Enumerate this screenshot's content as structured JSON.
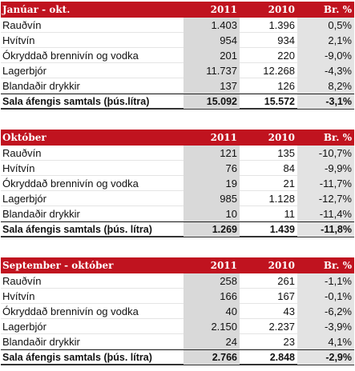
{
  "tables": [
    {
      "header": [
        "Janúar  - okt.",
        "2011",
        "2010",
        "Br. %"
      ],
      "rows": [
        [
          "Rauðvín",
          "1.403",
          "1.396",
          "0,5%"
        ],
        [
          "Hvítvín",
          "954",
          "934",
          "2,1%"
        ],
        [
          "Ókryddað brennivín og vodka",
          "201",
          "220",
          "-9,0%"
        ],
        [
          "Lagerbjór",
          "11.737",
          "12.268",
          "-4,3%"
        ],
        [
          "Blandaðir drykkir",
          "137",
          "126",
          "8,2%"
        ]
      ],
      "total": [
        "Sala áfengis samtals (þús.lítra)",
        "15.092",
        "15.572",
        "-3,1%"
      ]
    },
    {
      "header": [
        "Október",
        "2011",
        "2010",
        "Br. %"
      ],
      "rows": [
        [
          "Rauðvín",
          "121",
          "135",
          "-10,7%"
        ],
        [
          "Hvítvín",
          "76",
          "84",
          "-9,9%"
        ],
        [
          "Ókryddað brennivín og vodka",
          "19",
          "21",
          "-11,7%"
        ],
        [
          "Lagerbjór",
          "985",
          "1.128",
          "-12,7%"
        ],
        [
          "Blandaðir drykkir",
          "10",
          "11",
          "-11,4%"
        ]
      ],
      "total": [
        "Sala áfengis samtals (þús. lítra)",
        "1.269",
        "1.439",
        "-11,8%"
      ]
    },
    {
      "header": [
        "September - október",
        "2011",
        "2010",
        "Br. %"
      ],
      "rows": [
        [
          "Rauðvín",
          "258",
          "261",
          "-1,1%"
        ],
        [
          "Hvítvín",
          "166",
          "167",
          "-0,1%"
        ],
        [
          "Ókryddað brennivín og vodka",
          "40",
          "43",
          "-6,2%"
        ],
        [
          "Lagerbjór",
          "2.150",
          "2.237",
          "-3,9%"
        ],
        [
          "Blandaðir drykkir",
          "24",
          "23",
          "4,1%"
        ]
      ],
      "total": [
        "Sala áfengis samtals (þús. lítra)",
        "2.766",
        "2.848",
        "-2,9%"
      ]
    }
  ],
  "colors": {
    "header_bg": "#c0131f",
    "header_text": "#ffffff",
    "shade_2011": "#d9d9d9",
    "shade_change": "#e3e3e3"
  }
}
